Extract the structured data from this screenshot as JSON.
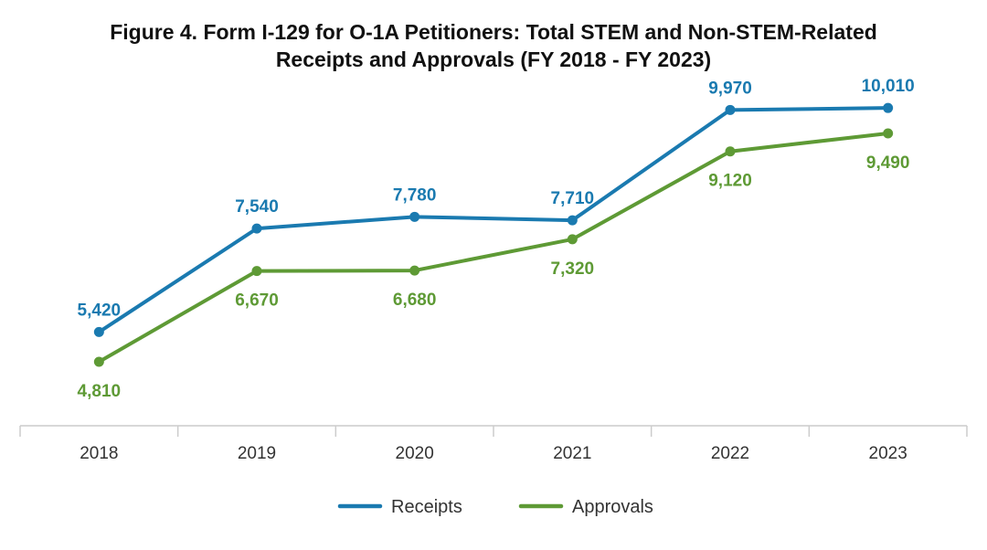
{
  "chart_data": {
    "type": "line",
    "title_line1": "Figure 4. Form I-129 for O-1A Petitioners: Total STEM and Non-STEM-Related",
    "title_line2": "Receipts and Approvals (FY 2018 - FY 2023)",
    "categories": [
      "2018",
      "2019",
      "2020",
      "2021",
      "2022",
      "2023"
    ],
    "series": [
      {
        "name": "Receipts",
        "color": "#1a7ab0",
        "values": [
          5420,
          7540,
          7780,
          7710,
          9970,
          10010
        ],
        "labels": [
          "5,420",
          "7,540",
          "7,780",
          "7,710",
          "9,970",
          "10,010"
        ],
        "label_pos": [
          "above",
          "above",
          "above",
          "above",
          "above",
          "above"
        ]
      },
      {
        "name": "Approvals",
        "color": "#5e9a35",
        "values": [
          4810,
          6670,
          6680,
          7320,
          9120,
          9490
        ],
        "labels": [
          "4,810",
          "6,670",
          "6,680",
          "7,320",
          "9,120",
          "9,490"
        ],
        "label_pos": [
          "below",
          "below",
          "below",
          "below",
          "below",
          "below"
        ]
      }
    ],
    "ylim": [
      3500,
      10500
    ],
    "xlabel": "",
    "ylabel": "",
    "grid": false,
    "legend_position": "bottom-center"
  }
}
